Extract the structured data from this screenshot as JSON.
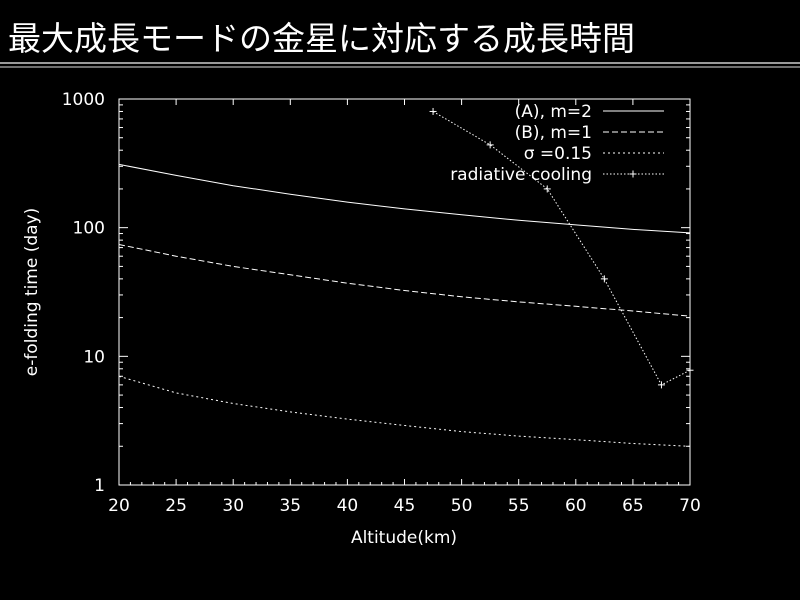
{
  "slide": {
    "title": "最大成長モードの金星に対応する成長時間"
  },
  "chart_data": {
    "type": "line",
    "xlabel": "Altitude(km)",
    "ylabel": "e-folding time (day)",
    "xlim": [
      20,
      70
    ],
    "ylim": [
      1,
      1000
    ],
    "yscale": "log",
    "xticks": [
      "20",
      "25",
      "30",
      "35",
      "40",
      "45",
      "50",
      "55",
      "60",
      "65",
      "70"
    ],
    "yticks": [
      "1",
      "10",
      "100",
      "1000"
    ],
    "legend_position": "top-right",
    "series": [
      {
        "name": "(A), m=2",
        "style": "solid",
        "x": [
          20,
          25,
          30,
          35,
          40,
          45,
          50,
          55,
          60,
          65,
          70
        ],
        "y": [
          310,
          255,
          212,
          182,
          158,
          140,
          126,
          114,
          105,
          97,
          91
        ]
      },
      {
        "name": "(B), m=1",
        "style": "dashed",
        "x": [
          20,
          25,
          30,
          35,
          40,
          45,
          50,
          55,
          60,
          65,
          70
        ],
        "y": [
          74,
          60,
          50,
          43,
          37,
          32.5,
          29,
          26.5,
          24.5,
          22.5,
          20.5
        ]
      },
      {
        "name": "σ =0.15",
        "style": "dotted",
        "x": [
          20,
          25,
          30,
          35,
          40,
          45,
          50,
          55,
          60,
          65,
          70
        ],
        "y": [
          7,
          5.2,
          4.3,
          3.7,
          3.25,
          2.9,
          2.6,
          2.4,
          2.25,
          2.1,
          2.0
        ]
      },
      {
        "name": "radiative cooling",
        "style": "dotted-points",
        "x": [
          47.5,
          52.5,
          57.5,
          62.5,
          67.5,
          70
        ],
        "y": [
          800,
          440,
          200,
          40,
          6,
          7.8
        ]
      }
    ]
  }
}
